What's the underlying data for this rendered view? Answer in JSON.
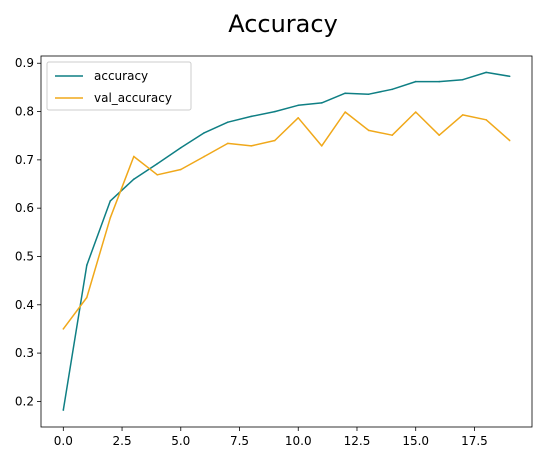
{
  "chart_data": {
    "type": "line",
    "title": "Accuracy",
    "xlabel": "",
    "ylabel": "",
    "xlim": [
      -0.95,
      19.95
    ],
    "ylim": [
      0.147,
      0.915
    ],
    "xticks": [
      0.0,
      2.5,
      5.0,
      7.5,
      10.0,
      12.5,
      15.0,
      17.5
    ],
    "xtick_labels": [
      "0.0",
      "2.5",
      "5.0",
      "7.5",
      "10.0",
      "12.5",
      "15.0",
      "17.5"
    ],
    "yticks": [
      0.2,
      0.3,
      0.4,
      0.5,
      0.6,
      0.7,
      0.8,
      0.9
    ],
    "ytick_labels": [
      "0.2",
      "0.3",
      "0.4",
      "0.5",
      "0.6",
      "0.7",
      "0.8",
      "0.9"
    ],
    "grid": false,
    "legend_position": "top-left",
    "x": [
      0,
      1,
      2,
      3,
      4,
      5,
      6,
      7,
      8,
      9,
      10,
      11,
      12,
      13,
      14,
      15,
      16,
      17,
      18,
      19
    ],
    "series": [
      {
        "name": "accuracy",
        "color": "#0f7f84",
        "values": [
          0.182,
          0.482,
          0.615,
          0.66,
          0.692,
          0.725,
          0.756,
          0.778,
          0.79,
          0.8,
          0.813,
          0.818,
          0.838,
          0.836,
          0.846,
          0.862,
          0.862,
          0.866,
          0.881,
          0.873
        ]
      },
      {
        "name": "val_accuracy",
        "color": "#f0a81a",
        "values": [
          0.35,
          0.415,
          0.58,
          0.707,
          0.669,
          0.68,
          0.707,
          0.734,
          0.729,
          0.74,
          0.787,
          0.729,
          0.799,
          0.761,
          0.751,
          0.799,
          0.751,
          0.793,
          0.783,
          0.74
        ]
      }
    ]
  }
}
